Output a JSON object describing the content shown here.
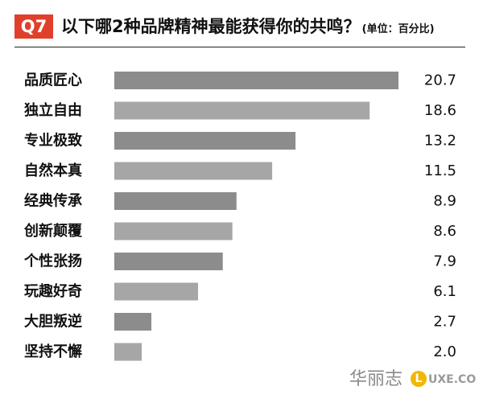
{
  "header": {
    "badge": "Q7",
    "title": "以下哪2种品牌精神最能获得你的共鸣？",
    "unit": "(单位：百分比)"
  },
  "colors": {
    "badge": "#e0402b",
    "bar_dark": "#8c8c8c",
    "bar_light": "#a6a6a6"
  },
  "chart_data": {
    "type": "bar",
    "orientation": "horizontal",
    "title": "以下哪2种品牌精神最能获得你的共鸣？",
    "unit": "(单位：百分比)",
    "categories": [
      "品质匠心",
      "独立自由",
      "专业极致",
      "自然本真",
      "经典传承",
      "创新颠覆",
      "个性张扬",
      "玩趣好奇",
      "大胆叛逆",
      "坚持不懈"
    ],
    "values": [
      20.7,
      18.6,
      13.2,
      11.5,
      8.9,
      8.6,
      7.9,
      6.1,
      2.7,
      2.0
    ],
    "value_labels": [
      "20.7",
      "18.6",
      "13.2",
      "11.5",
      "8.9",
      "8.6",
      "7.9",
      "6.1",
      "2.7",
      "2.0"
    ],
    "xlim": [
      0,
      20.7
    ],
    "grid": false,
    "legend": "none"
  },
  "footer": {
    "brand": "华丽志",
    "luxe_letter": "L",
    "luxe_text": "UXE.CO"
  }
}
